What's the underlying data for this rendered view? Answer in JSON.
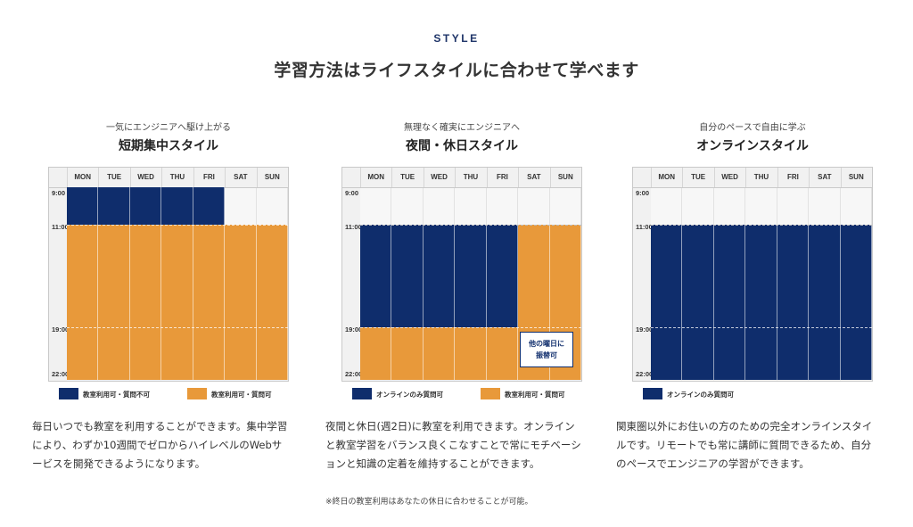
{
  "header": {
    "kicker": "STYLE",
    "title": "学習方法はライフスタイルに合わせて学べます"
  },
  "days": [
    "MON",
    "TUE",
    "WED",
    "THU",
    "FRI",
    "SAT",
    "SUN"
  ],
  "times": [
    "9:00",
    "11:00",
    "19:00",
    "22:00"
  ],
  "colors": {
    "navy": "#0f2d6c",
    "orange": "#e8993a",
    "kicker": "#1e3468"
  },
  "styles": [
    {
      "subtitle": "一気にエンジニアへ駆け上がる",
      "title": "短期集中スタイル",
      "legend": [
        {
          "label": "教室利用可・質問不可",
          "color": "navy"
        },
        {
          "label": "教室利用可・質問可",
          "color": "orange"
        }
      ],
      "description": "毎日いつでも教室を利用することができます。集中学習により、わずか10週間でゼロからハイレベルのWebサービスを開発できるようになります。"
    },
    {
      "subtitle": "無理なく確実にエンジニアへ",
      "title": "夜間・休日スタイル",
      "callout": "他の曜日に振替可",
      "legend": [
        {
          "label": "オンラインのみ質問可",
          "color": "navy"
        },
        {
          "label": "教室利用可・質問可",
          "color": "orange"
        }
      ],
      "description": "夜間と休日(週2日)に教室を利用できます。オンラインと教室学習をバランス良くこなすことで常にモチベーションと知識の定着を維持することができます。",
      "note": "※終日の教室利用はあなたの休日に合わせることが可能。"
    },
    {
      "subtitle": "自分のペースで自由に学ぶ",
      "title": "オンラインスタイル",
      "legend": [
        {
          "label": "オンラインのみ質問可",
          "color": "navy"
        }
      ],
      "description": "関東圏以外にお住いの方のための完全オンラインスタイルです。リモートでも常に講師に質問できるため、自分のペースでエンジニアの学習ができます。"
    }
  ]
}
